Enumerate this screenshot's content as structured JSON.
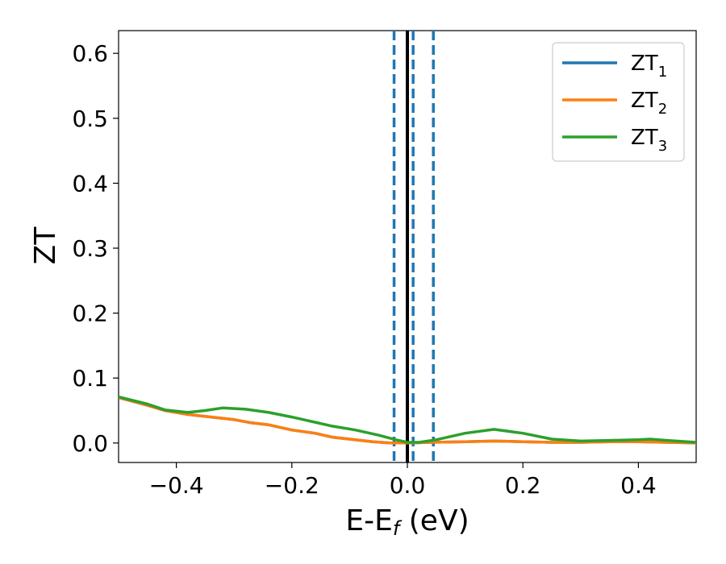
{
  "chart_data": {
    "type": "line",
    "xlabel": "E-E",
    "xlabel_sub": "f",
    "xlabel_unit": " (eV)",
    "ylabel": "ZT",
    "xlim": [
      -0.5,
      0.5
    ],
    "ylim": [
      -0.03,
      0.635
    ],
    "x_ticks": [
      -0.4,
      -0.2,
      0.0,
      0.2,
      0.4
    ],
    "x_tick_labels": [
      "−0.4",
      "−0.2",
      "0.0",
      "0.2",
      "0.4"
    ],
    "y_ticks": [
      0.0,
      0.1,
      0.2,
      0.3,
      0.4,
      0.5,
      0.6
    ],
    "y_tick_labels": [
      "0.0",
      "0.1",
      "0.2",
      "0.3",
      "0.4",
      "0.5",
      "0.6"
    ],
    "grid": false,
    "legend_position": "top-right",
    "vlines": [
      {
        "x": 0.0,
        "style": "solid",
        "color": "#000000"
      },
      {
        "x": -0.023,
        "style": "dashed",
        "color": "#1f77b4"
      },
      {
        "x": 0.01,
        "style": "dashed",
        "color": "#1f77b4"
      },
      {
        "x": 0.045,
        "style": "dashed",
        "color": "#1f77b4"
      }
    ],
    "series": [
      {
        "name": "ZT",
        "name_sub": "1",
        "color": "#1f77b4",
        "x": [
          -0.5,
          -0.45,
          -0.42,
          -0.38,
          -0.34,
          -0.3,
          -0.27,
          -0.24,
          -0.2,
          -0.16,
          -0.13,
          -0.1,
          -0.06,
          -0.03,
          0.0,
          0.04,
          0.1,
          0.15,
          0.2,
          0.25,
          0.3,
          0.35,
          0.4,
          0.45,
          0.5
        ],
        "values": [
          0.07,
          0.058,
          0.05,
          0.044,
          0.04,
          0.036,
          0.031,
          0.028,
          0.02,
          0.015,
          0.009,
          0.006,
          0.002,
          0.0,
          0.0,
          0.001,
          0.002,
          0.003,
          0.002,
          0.001,
          0.001,
          0.002,
          0.002,
          0.001,
          0.0
        ]
      },
      {
        "name": "ZT",
        "name_sub": "2",
        "color": "#ff7f0e",
        "x": [
          -0.5,
          -0.45,
          -0.42,
          -0.38,
          -0.34,
          -0.3,
          -0.27,
          -0.24,
          -0.2,
          -0.16,
          -0.13,
          -0.1,
          -0.06,
          -0.03,
          0.0,
          0.04,
          0.1,
          0.15,
          0.2,
          0.25,
          0.3,
          0.35,
          0.4,
          0.45,
          0.5
        ],
        "values": [
          0.07,
          0.058,
          0.05,
          0.044,
          0.04,
          0.036,
          0.031,
          0.028,
          0.02,
          0.015,
          0.009,
          0.006,
          0.002,
          0.0,
          0.0,
          0.001,
          0.002,
          0.003,
          0.002,
          0.001,
          0.001,
          0.002,
          0.002,
          0.001,
          0.0
        ]
      },
      {
        "name": "ZT",
        "name_sub": "3",
        "color": "#2ca02c",
        "x": [
          -0.5,
          -0.45,
          -0.42,
          -0.38,
          -0.35,
          -0.32,
          -0.28,
          -0.24,
          -0.2,
          -0.16,
          -0.13,
          -0.09,
          -0.05,
          -0.02,
          0.0,
          0.02,
          0.05,
          0.1,
          0.15,
          0.2,
          0.25,
          0.3,
          0.35,
          0.4,
          0.42,
          0.45,
          0.5
        ],
        "values": [
          0.071,
          0.06,
          0.051,
          0.047,
          0.05,
          0.054,
          0.052,
          0.047,
          0.04,
          0.032,
          0.026,
          0.02,
          0.012,
          0.005,
          0.001,
          0.001,
          0.005,
          0.015,
          0.021,
          0.015,
          0.006,
          0.003,
          0.004,
          0.005,
          0.006,
          0.004,
          0.001
        ]
      }
    ]
  }
}
